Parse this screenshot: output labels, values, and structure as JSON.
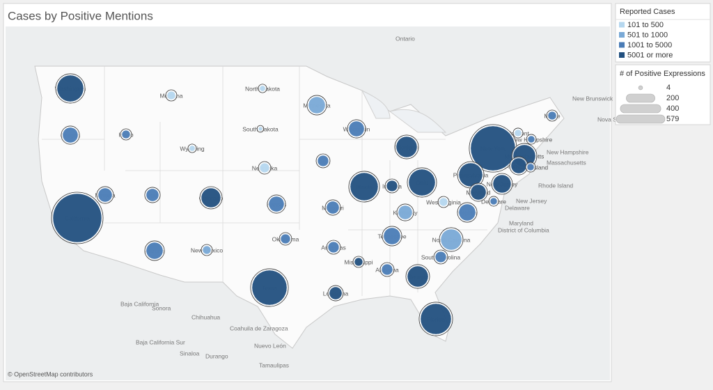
{
  "chart_data": {
    "type": "bubble-map",
    "title": "Cases by Positive Mentions",
    "attribution": "© OpenStreetMap contributors",
    "color_legend": {
      "title": "Reported Cases",
      "items": [
        {
          "label": "101 to 500",
          "color": "#b5d7ef"
        },
        {
          "label": "501 to 1000",
          "color": "#79a9d6"
        },
        {
          "label": "1001 to 5000",
          "color": "#4a7cb6"
        },
        {
          "label": "5001 or more",
          "color": "#22507f"
        }
      ]
    },
    "size_legend": {
      "title": "# of Positive Expressions",
      "values": [
        4,
        200,
        400,
        579
      ]
    },
    "region_labels": [
      "Ontario",
      "New Brunswick",
      "Nova Scotia",
      "New Hampshire",
      "Massachusetts",
      "Rhode Island",
      "New Jersey",
      "Delaware",
      "Maryland",
      "District of Columbia",
      "Baja California",
      "Sonora",
      "Chihuahua",
      "Coahuila de Zaragoza",
      "Nuevo León",
      "Durango",
      "Sinaloa",
      "Baja California Sur",
      "Tamaulipas"
    ],
    "points": [
      {
        "name": "Washington",
        "size": 172,
        "category": "5001 or more"
      },
      {
        "name": "Oregon",
        "size": 58,
        "category": "1001 to 5000"
      },
      {
        "name": "Idaho",
        "size": 17,
        "category": "1001 to 5000"
      },
      {
        "name": "Montana",
        "size": 17,
        "category": "101 to 500"
      },
      {
        "name": "Wyoming",
        "size": 8,
        "category": "101 to 500"
      },
      {
        "name": "North Dakota",
        "size": 8,
        "category": "101 to 500"
      },
      {
        "name": "South Dakota",
        "size": 4,
        "category": "101 to 500"
      },
      {
        "name": "Nebraska",
        "size": 23,
        "category": "101 to 500"
      },
      {
        "name": "Minnesota",
        "size": 69,
        "category": "501 to 1000"
      },
      {
        "name": "Wisconsin",
        "size": 58,
        "category": "1001 to 5000"
      },
      {
        "name": "Michigan",
        "size": 107,
        "category": "5001 or more"
      },
      {
        "name": "Iowa",
        "size": 30,
        "category": "1001 to 5000"
      },
      {
        "name": "Illinois",
        "size": 190,
        "category": "5001 or more"
      },
      {
        "name": "Indiana",
        "size": 30,
        "category": "5001 or more"
      },
      {
        "name": "Ohio",
        "size": 172,
        "category": "5001 or more"
      },
      {
        "name": "Pennsylvania",
        "size": 137,
        "category": "5001 or more"
      },
      {
        "name": "New York",
        "size": 487,
        "category": "5001 or more"
      },
      {
        "name": "Massachusetts",
        "size": 122,
        "category": "5001 or more"
      },
      {
        "name": "Connecticut",
        "size": 58,
        "category": "5001 or more"
      },
      {
        "name": "Rhode Island",
        "size": 12,
        "category": "1001 to 5000"
      },
      {
        "name": "Vermont",
        "size": 12,
        "category": "101 to 500"
      },
      {
        "name": "New Hampshire",
        "size": 12,
        "category": "1001 to 5000"
      },
      {
        "name": "Maine",
        "size": 17,
        "category": "1001 to 5000"
      },
      {
        "name": "New Jersey",
        "size": 80,
        "category": "5001 or more"
      },
      {
        "name": "Delaware",
        "size": 12,
        "category": "1001 to 5000"
      },
      {
        "name": "Maryland",
        "size": 58,
        "category": "5001 or more"
      },
      {
        "name": "Virginia",
        "size": 69,
        "category": "1001 to 5000"
      },
      {
        "name": "West Virginia",
        "size": 17,
        "category": "101 to 500"
      },
      {
        "name": "Kentucky",
        "size": 48,
        "category": "501 to 1000"
      },
      {
        "name": "Tennessee",
        "size": 69,
        "category": "1001 to 5000"
      },
      {
        "name": "North Carolina",
        "size": 107,
        "category": "501 to 1000"
      },
      {
        "name": "South Carolina",
        "size": 30,
        "category": "1001 to 5000"
      },
      {
        "name": "Georgia",
        "size": 107,
        "category": "5001 or more"
      },
      {
        "name": "Florida",
        "size": 230,
        "category": "5001 or more"
      },
      {
        "name": "Alabama",
        "size": 30,
        "category": "1001 to 5000"
      },
      {
        "name": "Mississippi",
        "size": 17,
        "category": "5001 or more"
      },
      {
        "name": "Louisiana",
        "size": 39,
        "category": "5001 or more"
      },
      {
        "name": "Arkansas",
        "size": 30,
        "category": "1001 to 5000"
      },
      {
        "name": "Missouri",
        "size": 39,
        "category": "1001 to 5000"
      },
      {
        "name": "Oklahoma",
        "size": 23,
        "category": "1001 to 5000"
      },
      {
        "name": "Kansas",
        "size": 58,
        "category": "1001 to 5000"
      },
      {
        "name": "Texas",
        "size": 297,
        "category": "5001 or more"
      },
      {
        "name": "Colorado",
        "size": 93,
        "category": "5001 or more"
      },
      {
        "name": "New Mexico",
        "size": 17,
        "category": "501 to 1000"
      },
      {
        "name": "Arizona",
        "size": 69,
        "category": "1001 to 5000"
      },
      {
        "name": "Utah",
        "size": 39,
        "category": "1001 to 5000"
      },
      {
        "name": "Nevada",
        "size": 48,
        "category": "1001 to 5000"
      },
      {
        "name": "California",
        "size": 579,
        "category": "5001 or more"
      }
    ]
  }
}
